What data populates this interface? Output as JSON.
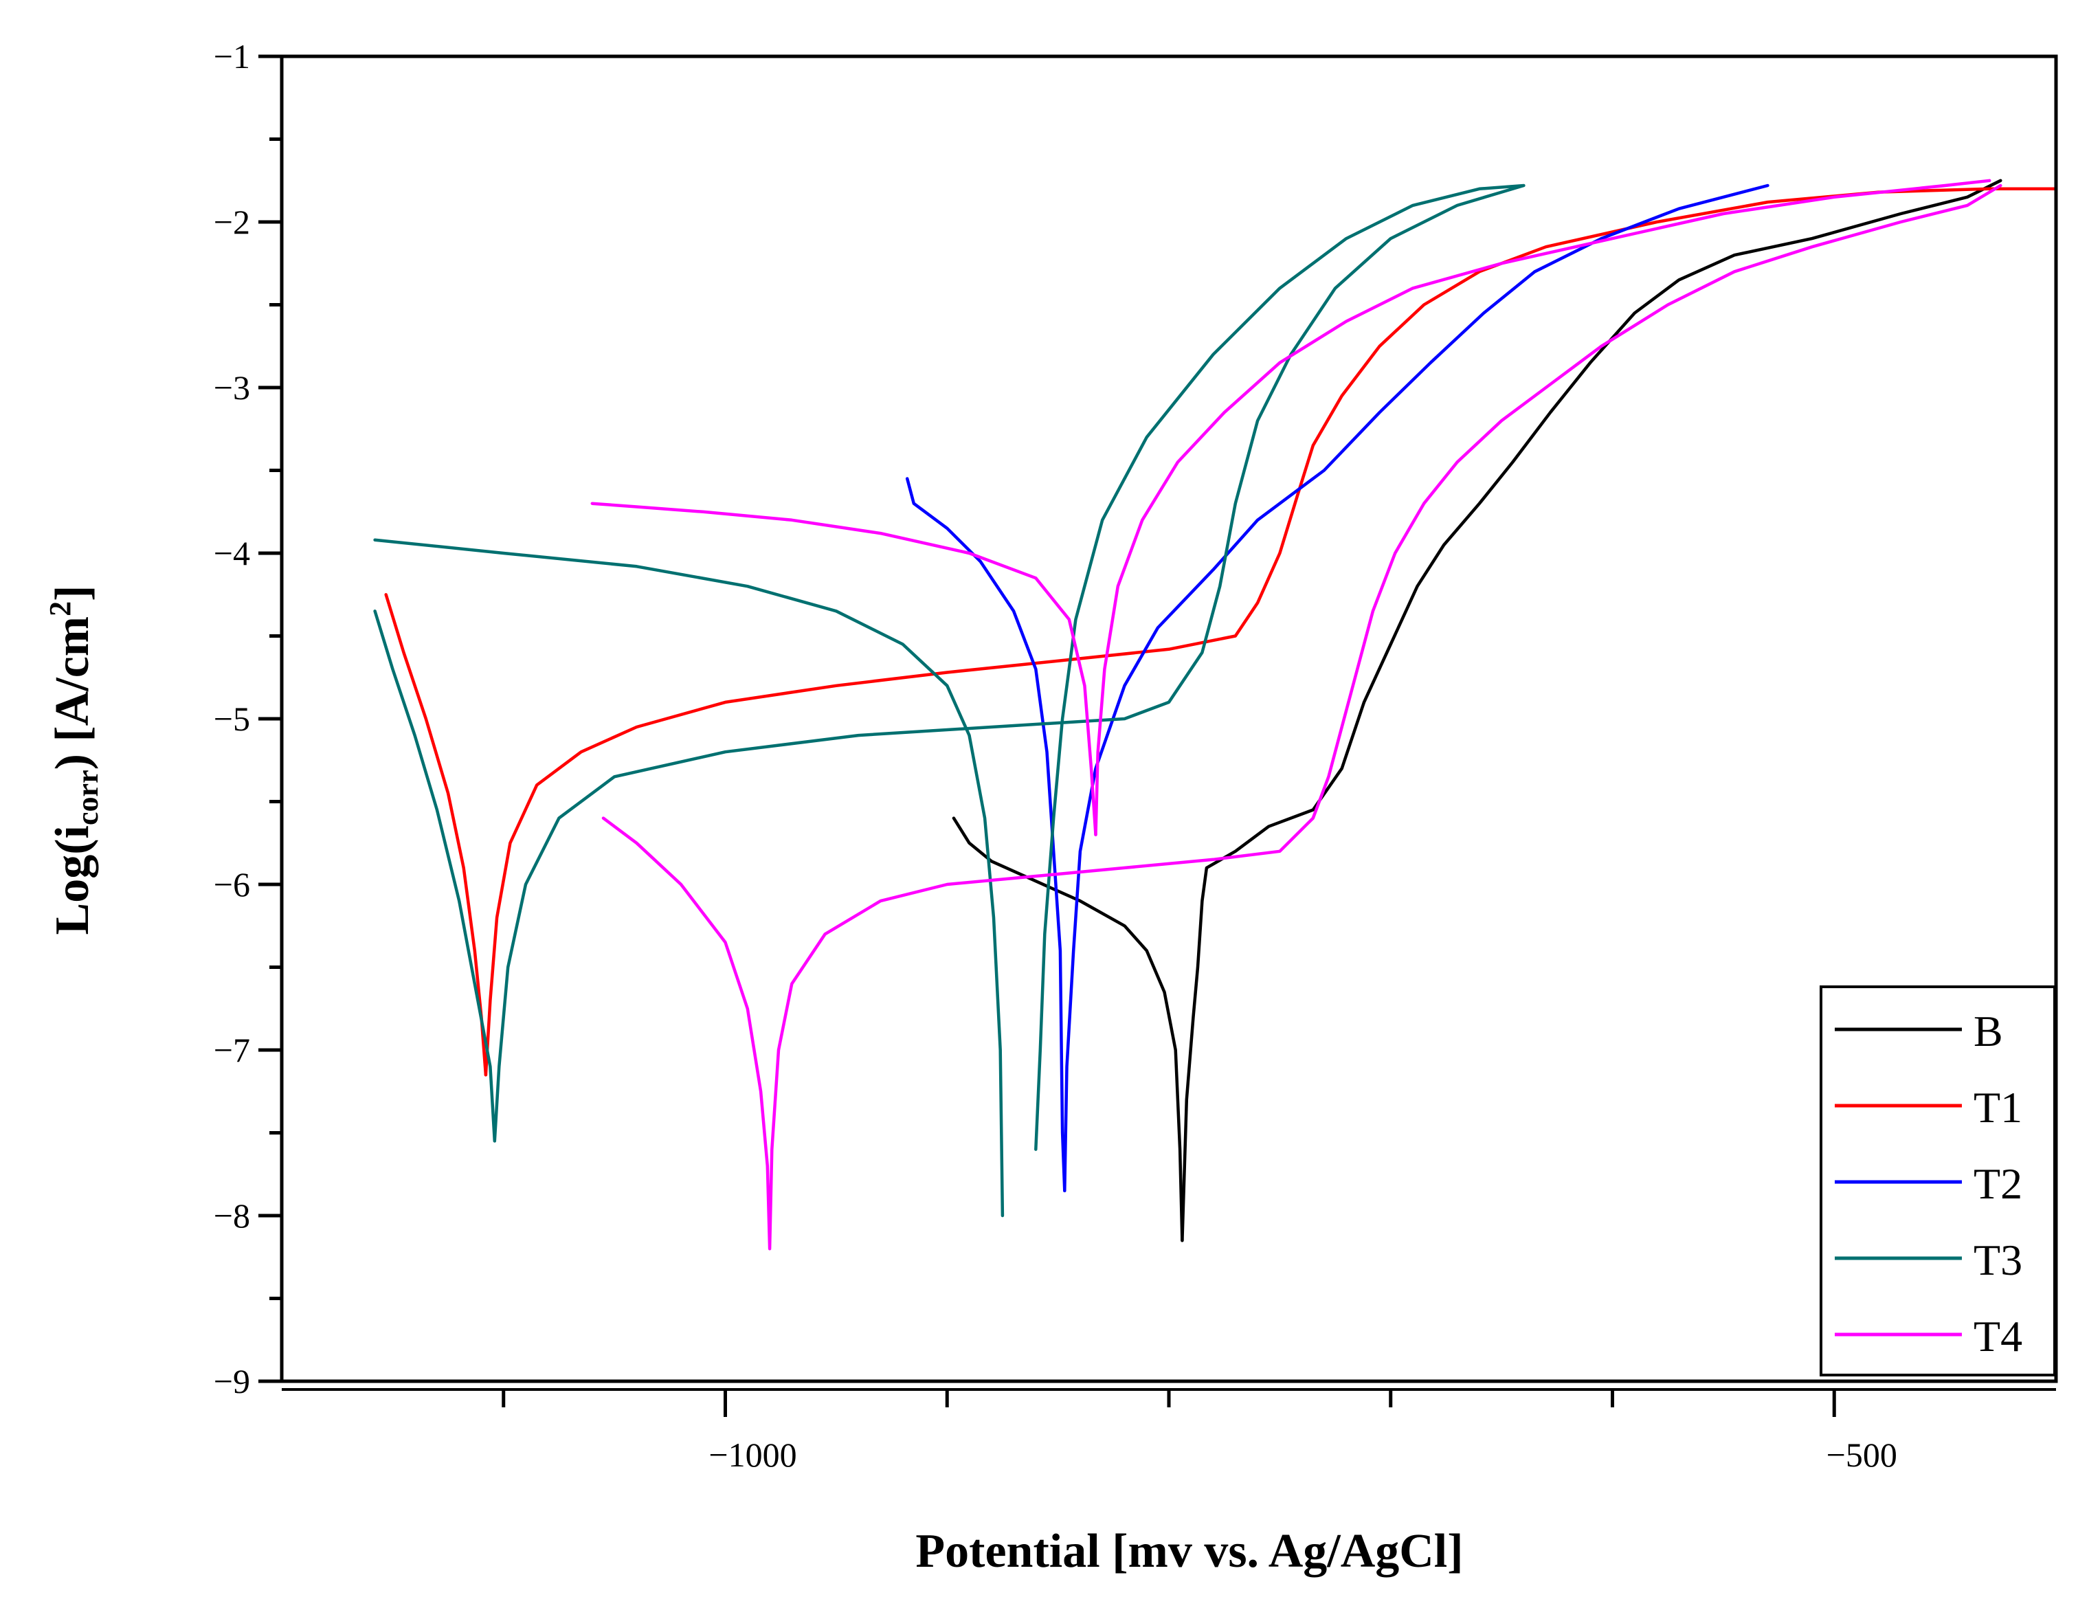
{
  "chart_data": {
    "type": "line",
    "xlabel": "Potential [mv vs. Ag/AgCl]",
    "ylabel_parts": {
      "prefix": "Log(i",
      "subscript": "corr",
      "middle": ") [A/cm",
      "superscript": "2",
      "suffix": "]"
    },
    "xlim": [
      -1200,
      -400
    ],
    "ylim": [
      -9,
      -1
    ],
    "x_ticks": [
      -1000,
      -500
    ],
    "x_minor_ticks": [
      -1100,
      -900,
      -800,
      -700,
      -600
    ],
    "y_ticks": [
      -9,
      -8,
      -7,
      -6,
      -5,
      -4,
      -3,
      -2,
      -1
    ],
    "x_tick_labels": [
      "−1000",
      "−500"
    ],
    "y_tick_labels": [
      "−9",
      "−8",
      "−7",
      "−6",
      "−5",
      "−4",
      "−3",
      "−2",
      "−1"
    ],
    "legend_position": "bottom-right",
    "grid": false,
    "series": [
      {
        "name": "B",
        "color": "#000000",
        "cathodic": [
          [
            -897,
            -5.6
          ],
          [
            -890,
            -5.75
          ],
          [
            -880,
            -5.86
          ],
          [
            -860,
            -5.98
          ],
          [
            -840,
            -6.1
          ],
          [
            -820,
            -6.25
          ],
          [
            -810,
            -6.4
          ],
          [
            -802,
            -6.65
          ],
          [
            -797,
            -7.0
          ],
          [
            -795,
            -7.6
          ],
          [
            -794,
            -8.15
          ]
        ],
        "anodic": [
          [
            -794,
            -8.15
          ],
          [
            -792,
            -7.3
          ],
          [
            -789,
            -6.8
          ],
          [
            -787,
            -6.5
          ],
          [
            -785,
            -6.1
          ],
          [
            -783,
            -5.9
          ],
          [
            -770,
            -5.8
          ],
          [
            -755,
            -5.65
          ],
          [
            -735,
            -5.55
          ],
          [
            -722,
            -5.3
          ],
          [
            -712,
            -4.9
          ],
          [
            -700,
            -4.55
          ],
          [
            -688,
            -4.2
          ],
          [
            -676,
            -3.95
          ],
          [
            -660,
            -3.7
          ],
          [
            -645,
            -3.45
          ],
          [
            -628,
            -3.15
          ],
          [
            -610,
            -2.85
          ],
          [
            -590,
            -2.55
          ],
          [
            -570,
            -2.35
          ],
          [
            -545,
            -2.2
          ],
          [
            -510,
            -2.1
          ],
          [
            -470,
            -1.95
          ],
          [
            -440,
            -1.85
          ],
          [
            -425,
            -1.75
          ]
        ]
      },
      {
        "name": "T1",
        "color": "#ff0000",
        "cathodic": [
          [
            -1153,
            -4.25
          ],
          [
            -1145,
            -4.6
          ],
          [
            -1135,
            -5.0
          ],
          [
            -1125,
            -5.45
          ],
          [
            -1118,
            -5.9
          ],
          [
            -1113,
            -6.4
          ],
          [
            -1110,
            -6.8
          ],
          [
            -1108,
            -7.15
          ]
        ],
        "anodic": [
          [
            -1108,
            -7.15
          ],
          [
            -1106,
            -6.7
          ],
          [
            -1103,
            -6.2
          ],
          [
            -1097,
            -5.75
          ],
          [
            -1085,
            -5.4
          ],
          [
            -1065,
            -5.2
          ],
          [
            -1040,
            -5.05
          ],
          [
            -1000,
            -4.9
          ],
          [
            -950,
            -4.8
          ],
          [
            -900,
            -4.72
          ],
          [
            -850,
            -4.65
          ],
          [
            -800,
            -4.58
          ],
          [
            -770,
            -4.5
          ],
          [
            -760,
            -4.3
          ],
          [
            -750,
            -4.0
          ],
          [
            -742,
            -3.65
          ],
          [
            -735,
            -3.35
          ],
          [
            -722,
            -3.05
          ],
          [
            -705,
            -2.75
          ],
          [
            -685,
            -2.5
          ],
          [
            -660,
            -2.3
          ],
          [
            -630,
            -2.15
          ],
          [
            -580,
            -2.0
          ],
          [
            -530,
            -1.88
          ],
          [
            -480,
            -1.82
          ],
          [
            -430,
            -1.8
          ],
          [
            -400,
            -1.8
          ]
        ]
      },
      {
        "name": "T2",
        "color": "#0000ff",
        "cathodic": [
          [
            -918,
            -3.55
          ],
          [
            -915,
            -3.7
          ],
          [
            -900,
            -3.85
          ],
          [
            -885,
            -4.05
          ],
          [
            -870,
            -4.35
          ],
          [
            -860,
            -4.7
          ],
          [
            -855,
            -5.2
          ],
          [
            -852,
            -5.8
          ],
          [
            -849,
            -6.4
          ],
          [
            -848,
            -7.5
          ],
          [
            -847,
            -7.85
          ]
        ],
        "anodic": [
          [
            -847,
            -7.85
          ],
          [
            -846,
            -7.1
          ],
          [
            -843,
            -6.4
          ],
          [
            -840,
            -5.8
          ],
          [
            -833,
            -5.3
          ],
          [
            -820,
            -4.8
          ],
          [
            -805,
            -4.45
          ],
          [
            -780,
            -4.1
          ],
          [
            -760,
            -3.8
          ],
          [
            -730,
            -3.5
          ],
          [
            -705,
            -3.15
          ],
          [
            -682,
            -2.85
          ],
          [
            -658,
            -2.55
          ],
          [
            -635,
            -2.3
          ],
          [
            -605,
            -2.1
          ],
          [
            -570,
            -1.92
          ],
          [
            -530,
            -1.78
          ]
        ]
      },
      {
        "name": "T3",
        "color": "#007070",
        "cathodic": [
          [
            -1158,
            -3.92
          ],
          [
            -1100,
            -4.0
          ],
          [
            -1040,
            -4.08
          ],
          [
            -990,
            -4.2
          ],
          [
            -950,
            -4.35
          ],
          [
            -920,
            -4.55
          ],
          [
            -900,
            -4.8
          ],
          [
            -890,
            -5.1
          ],
          [
            -883,
            -5.6
          ],
          [
            -879,
            -6.2
          ],
          [
            -876,
            -7.0
          ],
          [
            -875,
            -8.0
          ]
        ],
        "anodic": [
          [
            -1158,
            -4.35
          ],
          [
            -1150,
            -4.7
          ],
          [
            -1140,
            -5.1
          ],
          [
            -1130,
            -5.55
          ],
          [
            -1120,
            -6.1
          ],
          [
            -1113,
            -6.6
          ],
          [
            -1106,
            -7.1
          ],
          [
            -1104,
            -7.55
          ],
          [
            -1102,
            -7.1
          ],
          [
            -1098,
            -6.5
          ],
          [
            -1090,
            -6.0
          ],
          [
            -1075,
            -5.6
          ],
          [
            -1050,
            -5.35
          ],
          [
            -1000,
            -5.2
          ],
          [
            -940,
            -5.1
          ],
          [
            -880,
            -5.05
          ],
          [
            -820,
            -5.0
          ],
          [
            -800,
            -4.9
          ],
          [
            -785,
            -4.6
          ],
          [
            -777,
            -4.2
          ],
          [
            -770,
            -3.7
          ],
          [
            -760,
            -3.2
          ],
          [
            -745,
            -2.8
          ],
          [
            -725,
            -2.4
          ],
          [
            -700,
            -2.1
          ],
          [
            -670,
            -1.9
          ],
          [
            -650,
            -1.82
          ],
          [
            -640,
            -1.78
          ],
          [
            -660,
            -1.8
          ],
          [
            -690,
            -1.9
          ],
          [
            -720,
            -2.1
          ],
          [
            -750,
            -2.4
          ],
          [
            -780,
            -2.8
          ],
          [
            -810,
            -3.3
          ],
          [
            -830,
            -3.8
          ],
          [
            -842,
            -4.4
          ],
          [
            -848,
            -5.0
          ],
          [
            -852,
            -5.6
          ],
          [
            -856,
            -6.3
          ],
          [
            -858,
            -7.0
          ],
          [
            -860,
            -7.6
          ]
        ]
      },
      {
        "name": "T4",
        "color": "#ff00ff",
        "cathodic": [
          [
            -1060,
            -3.7
          ],
          [
            -1040,
            -3.72
          ],
          [
            -1010,
            -3.75
          ],
          [
            -970,
            -3.8
          ],
          [
            -930,
            -3.88
          ],
          [
            -890,
            -4.0
          ],
          [
            -860,
            -4.15
          ],
          [
            -845,
            -4.4
          ],
          [
            -838,
            -4.8
          ],
          [
            -835,
            -5.3
          ],
          [
            -833,
            -5.7
          ]
        ],
        "anodic": [
          [
            -833,
            -5.7
          ],
          [
            -832,
            -5.2
          ],
          [
            -829,
            -4.7
          ],
          [
            -823,
            -4.2
          ],
          [
            -812,
            -3.8
          ],
          [
            -796,
            -3.45
          ],
          [
            -775,
            -3.15
          ],
          [
            -750,
            -2.85
          ],
          [
            -720,
            -2.6
          ],
          [
            -690,
            -2.4
          ],
          [
            -650,
            -2.25
          ],
          [
            -600,
            -2.1
          ],
          [
            -550,
            -1.95
          ],
          [
            -500,
            -1.85
          ],
          [
            -450,
            -1.78
          ],
          [
            -430,
            -1.75
          ]
        ],
        "extra": [
          [
            -1055,
            -5.6
          ],
          [
            -1040,
            -5.75
          ],
          [
            -1020,
            -6.0
          ],
          [
            -1000,
            -6.35
          ],
          [
            -990,
            -6.75
          ],
          [
            -984,
            -7.25
          ],
          [
            -981,
            -7.7
          ],
          [
            -980,
            -8.2
          ],
          [
            -979,
            -7.6
          ],
          [
            -976,
            -7.0
          ],
          [
            -970,
            -6.6
          ],
          [
            -955,
            -6.3
          ],
          [
            -930,
            -6.1
          ],
          [
            -900,
            -6.0
          ],
          [
            -860,
            -5.95
          ],
          [
            -820,
            -5.9
          ],
          [
            -780,
            -5.85
          ],
          [
            -750,
            -5.8
          ],
          [
            -735,
            -5.6
          ],
          [
            -728,
            -5.35
          ],
          [
            -722,
            -5.05
          ],
          [
            -715,
            -4.7
          ],
          [
            -708,
            -4.35
          ],
          [
            -698,
            -4.0
          ],
          [
            -685,
            -3.7
          ],
          [
            -670,
            -3.45
          ],
          [
            -650,
            -3.2
          ],
          [
            -630,
            -3.0
          ],
          [
            -605,
            -2.75
          ],
          [
            -575,
            -2.5
          ],
          [
            -545,
            -2.3
          ],
          [
            -510,
            -2.15
          ],
          [
            -470,
            -2.0
          ],
          [
            -440,
            -1.9
          ],
          [
            -425,
            -1.78
          ]
        ]
      }
    ]
  }
}
